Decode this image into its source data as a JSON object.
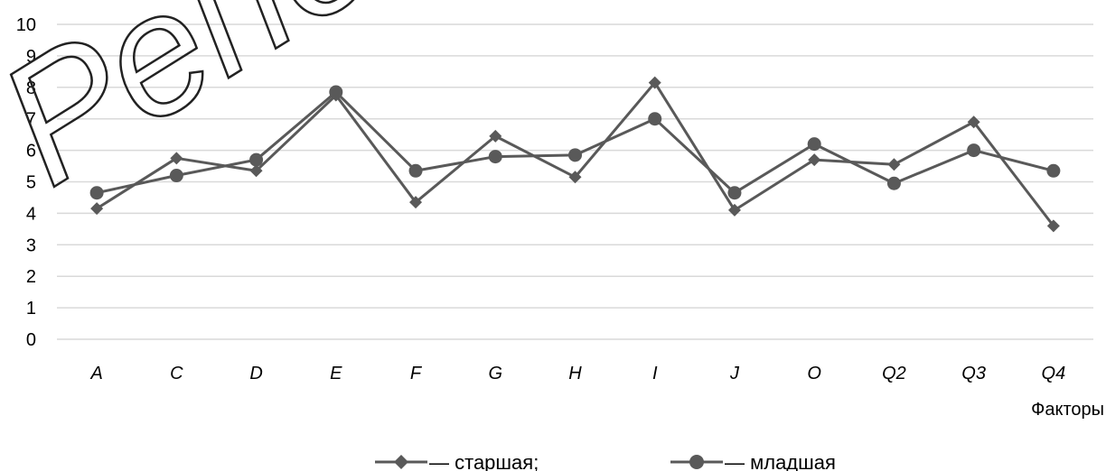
{
  "chart_data": {
    "type": "line",
    "categories": [
      "A",
      "C",
      "D",
      "E",
      "F",
      "G",
      "H",
      "I",
      "J",
      "O",
      "Q2",
      "Q3",
      "Q4"
    ],
    "series": [
      {
        "name": "— старшая;",
        "marker": "diamond",
        "values": [
          4.15,
          5.75,
          5.35,
          7.75,
          4.35,
          6.45,
          5.15,
          8.15,
          4.1,
          5.7,
          5.55,
          6.9,
          3.6
        ]
      },
      {
        "name": "— младшая",
        "marker": "circle",
        "values": [
          4.65,
          5.2,
          5.7,
          7.85,
          5.35,
          5.8,
          5.85,
          7.0,
          4.65,
          6.2,
          4.95,
          6.0,
          5.35
        ]
      }
    ],
    "xlabel": "Факторы",
    "ylabel": "",
    "ylim": [
      0,
      10
    ],
    "yticks": [
      0,
      1,
      2,
      3,
      4,
      5,
      6,
      7,
      8,
      9,
      10
    ],
    "grid": true,
    "legend": "bottom-center",
    "line_color": "#595959",
    "grid_color": "#d9d9d9"
  },
  "watermark": "Репо"
}
